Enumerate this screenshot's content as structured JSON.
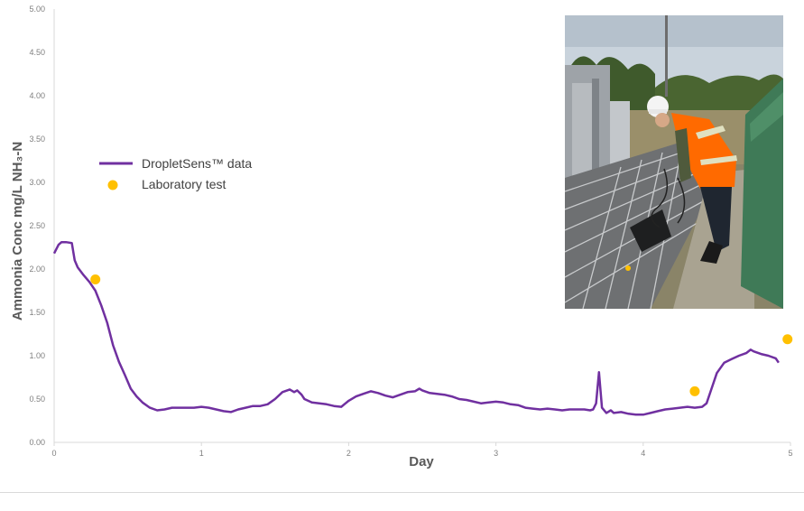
{
  "chart_data": {
    "type": "line",
    "xlabel": "Day",
    "ylabel": "Ammonia Conc mg/L NH₃-N",
    "xlim": [
      0,
      5
    ],
    "ylim": [
      0,
      5
    ],
    "x_ticks": [
      "0",
      "1",
      "2",
      "3",
      "4",
      "5"
    ],
    "y_ticks": [
      "0.00",
      "0.50",
      "1.00",
      "1.50",
      "2.00",
      "2.50",
      "3.00",
      "3.50",
      "4.00",
      "4.50",
      "5.00"
    ],
    "grid": false,
    "legend_position": "left",
    "series": [
      {
        "name": "DropletSens™ data",
        "type": "line",
        "color": "#7030a0",
        "x": [
          0.0,
          0.03,
          0.05,
          0.08,
          0.12,
          0.14,
          0.16,
          0.2,
          0.24,
          0.28,
          0.32,
          0.36,
          0.4,
          0.44,
          0.48,
          0.52,
          0.56,
          0.6,
          0.65,
          0.7,
          0.75,
          0.8,
          0.85,
          0.9,
          0.95,
          1.0,
          1.05,
          1.1,
          1.15,
          1.2,
          1.25,
          1.3,
          1.35,
          1.4,
          1.45,
          1.5,
          1.55,
          1.6,
          1.63,
          1.65,
          1.68,
          1.7,
          1.75,
          1.8,
          1.85,
          1.9,
          1.95,
          2.0,
          2.05,
          2.1,
          2.15,
          2.2,
          2.25,
          2.3,
          2.35,
          2.4,
          2.45,
          2.48,
          2.5,
          2.55,
          2.6,
          2.65,
          2.7,
          2.75,
          2.8,
          2.85,
          2.9,
          2.95,
          3.0,
          3.05,
          3.1,
          3.15,
          3.2,
          3.25,
          3.3,
          3.35,
          3.4,
          3.45,
          3.5,
          3.55,
          3.6,
          3.64,
          3.66,
          3.68,
          3.7,
          3.72,
          3.75,
          3.78,
          3.8,
          3.85,
          3.9,
          3.95,
          4.0,
          4.05,
          4.1,
          4.15,
          4.2,
          4.25,
          4.3,
          4.35,
          4.4,
          4.43,
          4.46,
          4.5,
          4.55,
          4.6,
          4.65,
          4.7,
          4.73,
          4.75,
          4.8,
          4.85,
          4.9,
          4.92
        ],
        "y": [
          2.18,
          2.28,
          2.31,
          2.31,
          2.3,
          2.1,
          2.02,
          1.93,
          1.85,
          1.75,
          1.58,
          1.38,
          1.12,
          0.93,
          0.78,
          0.62,
          0.53,
          0.46,
          0.4,
          0.37,
          0.38,
          0.4,
          0.4,
          0.4,
          0.4,
          0.41,
          0.4,
          0.38,
          0.36,
          0.35,
          0.38,
          0.4,
          0.42,
          0.42,
          0.44,
          0.5,
          0.58,
          0.61,
          0.58,
          0.6,
          0.55,
          0.5,
          0.46,
          0.45,
          0.44,
          0.42,
          0.41,
          0.48,
          0.53,
          0.56,
          0.59,
          0.57,
          0.54,
          0.52,
          0.55,
          0.58,
          0.59,
          0.62,
          0.6,
          0.57,
          0.56,
          0.55,
          0.53,
          0.5,
          0.49,
          0.47,
          0.45,
          0.46,
          0.47,
          0.46,
          0.44,
          0.43,
          0.4,
          0.39,
          0.38,
          0.39,
          0.38,
          0.37,
          0.38,
          0.38,
          0.38,
          0.37,
          0.38,
          0.45,
          0.81,
          0.4,
          0.34,
          0.37,
          0.34,
          0.35,
          0.33,
          0.32,
          0.32,
          0.34,
          0.36,
          0.38,
          0.39,
          0.4,
          0.41,
          0.4,
          0.41,
          0.45,
          0.6,
          0.8,
          0.92,
          0.96,
          1.0,
          1.03,
          1.07,
          1.05,
          1.02,
          1.0,
          0.97,
          0.92
        ]
      },
      {
        "name": "Laboratory test",
        "type": "scatter",
        "color": "#ffc000",
        "x": [
          0.28,
          4.35,
          4.98
        ],
        "y": [
          1.88,
          0.59,
          1.19
        ]
      }
    ]
  },
  "photo": {
    "description_icon": "engineer-photo"
  }
}
